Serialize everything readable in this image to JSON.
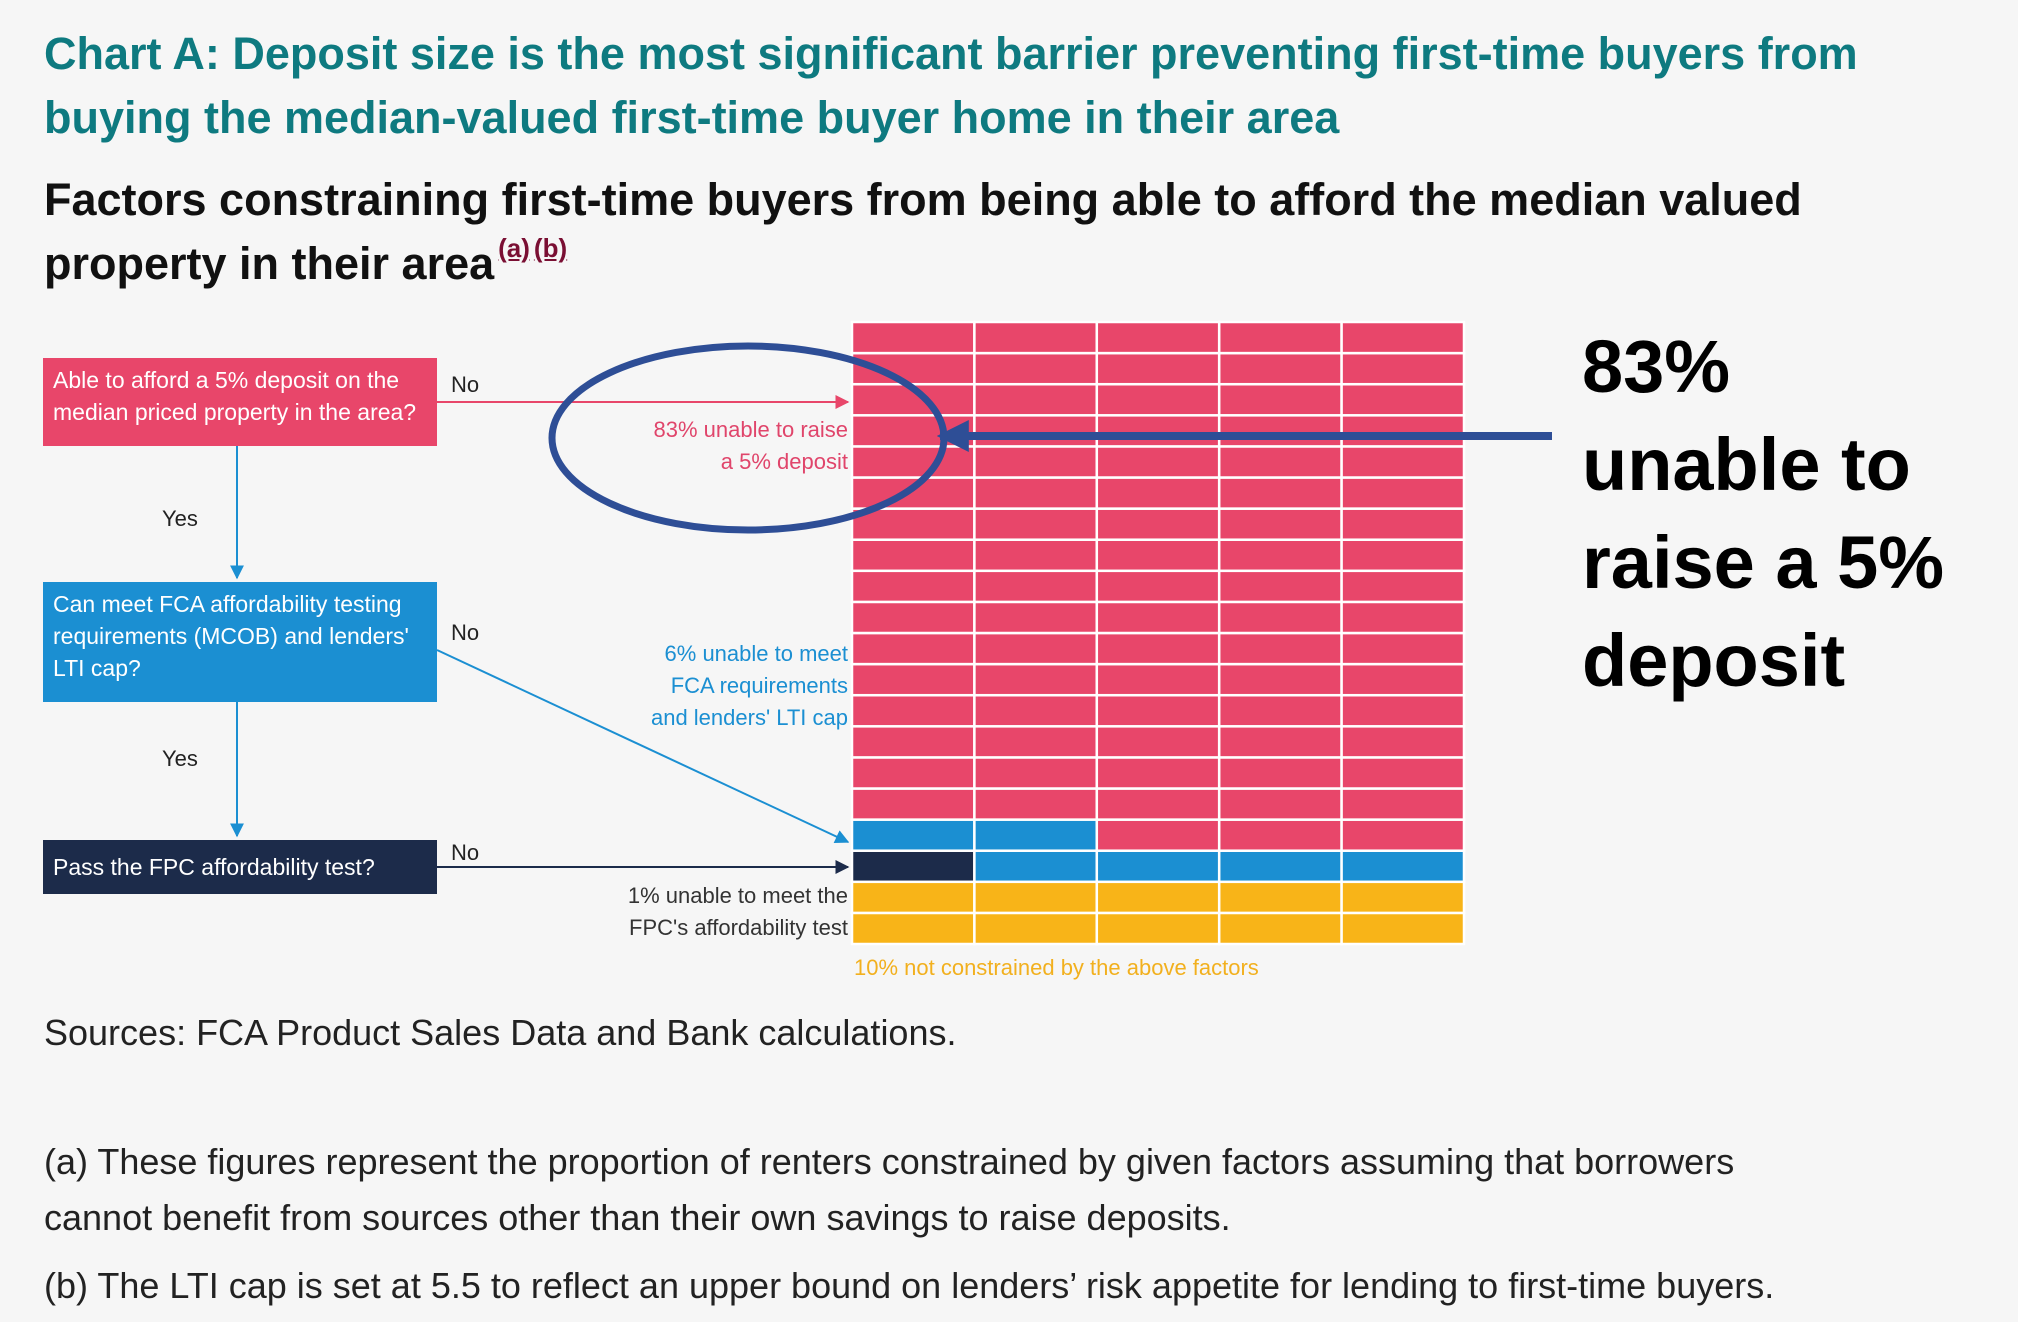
{
  "chart_data": {
    "type": "waffle",
    "title": "Chart A: Deposit size is the most significant barrier preventing first-time buyers from buying the median-valued first-time buyer home in their area",
    "subtitle": "Factors constraining first-time buyers from being able to afford the median valued property in their area",
    "footnote_refs": [
      "(a)",
      "(b)"
    ],
    "grid": {
      "columns": 5,
      "rows": 20
    },
    "categories": [
      {
        "name": "Unable to raise a 5% deposit",
        "value": 83,
        "color": "#e8466a"
      },
      {
        "name": "Unable to meet FCA requirements and lenders' LTI cap",
        "value": 6,
        "color": "#1b8fd2"
      },
      {
        "name": "Unable to meet the FPC's affordability test",
        "value": 1,
        "color": "#1c2b4a"
      },
      {
        "name": "Not constrained by the above factors",
        "value": 10,
        "color": "#f8b418"
      }
    ]
  },
  "flow": {
    "q1": "Able to afford a 5% deposit on the median priced property in the area?",
    "q2": "Can meet FCA affordability testing requirements (MCOB) and lenders' LTI cap?",
    "q3": "Pass the FPC affordability test?",
    "no": "No",
    "yes": "Yes"
  },
  "notes": {
    "deposit_line1": "83% unable to raise",
    "deposit_line2": "a 5% deposit",
    "fca_line1": "6% unable to meet",
    "fca_line2": "FCA requirements",
    "fca_line3": "and lenders' LTI cap",
    "fpc_line1": "1% unable to meet the",
    "fpc_line2": "FPC's affordability test",
    "unconstrained": "10% not constrained by the above factors"
  },
  "callout": {
    "line1": "83%",
    "line2": "unable to",
    "line3": "raise a 5%",
    "line4": "deposit",
    "color": "#2e4e96"
  },
  "sources": "Sources: FCA Product Sales Data and Bank calculations.",
  "footnotes": {
    "a_line1": "(a) These figures represent the proportion of renters constrained by given factors assuming that borrowers",
    "a_line2": "cannot benefit from sources other than their own savings to raise deposits.",
    "b": "(b) The LTI cap is set at 5.5 to reflect an upper bound on lenders’ risk appetite for lending to first-time buyers."
  }
}
